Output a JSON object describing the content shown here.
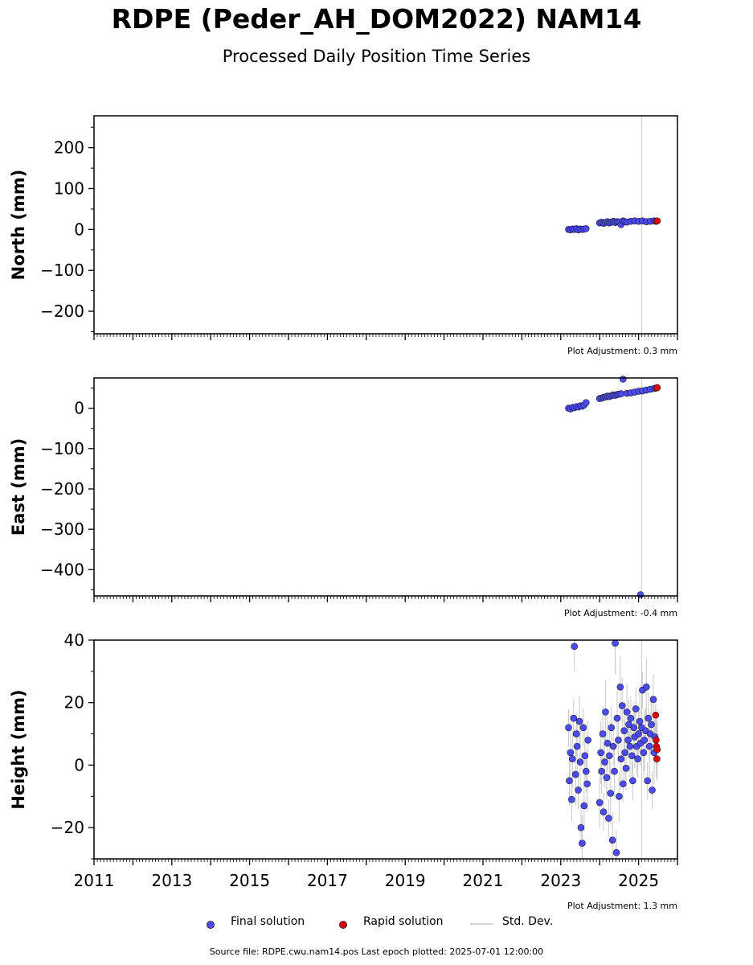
{
  "title": "RDPE (Peder_AH_DOM2022) NAM14",
  "subtitle": "Processed Daily Position Time Series",
  "legend": {
    "final": "Final solution",
    "rapid": "Rapid solution",
    "std": "Std. Dev.",
    "colors": {
      "final": "#4b4bef",
      "rapid": "#e00000",
      "std": "#d3d3d3"
    }
  },
  "source_note": "Source file: RDPE.cwu.nam14.pos  Last epoch plotted: 2025-07-01 12:00:00",
  "chart_data": [
    {
      "type": "scatter",
      "ylabel": "North (mm)",
      "adjustment": "Plot Adjustment: 0.3 mm",
      "xlim": [
        2011.0,
        2026.0
      ],
      "ylim": [
        -255,
        278
      ],
      "yticks": [
        -200,
        -100,
        0,
        100,
        200
      ],
      "ytick_labels": [
        "−200",
        "−100",
        "0",
        "100",
        "200"
      ],
      "series": [
        {
          "name": "Final solution",
          "x": [
            2023.2,
            2023.25,
            2023.3,
            2023.35,
            2023.4,
            2023.45,
            2023.5,
            2023.55,
            2023.6,
            2023.65,
            2024.0,
            2024.05,
            2024.1,
            2024.15,
            2024.2,
            2024.25,
            2024.3,
            2024.35,
            2024.4,
            2024.45,
            2024.5,
            2024.55,
            2024.6,
            2024.65,
            2024.7,
            2024.8,
            2024.9,
            2025.0,
            2025.1,
            2025.2,
            2025.3,
            2025.4
          ],
          "y": [
            0,
            -1,
            1,
            0,
            2,
            -1,
            1,
            0,
            1,
            2,
            16,
            18,
            15,
            17,
            19,
            16,
            18,
            20,
            17,
            19,
            18,
            12,
            21,
            19,
            18,
            20,
            21,
            20,
            21,
            19,
            20,
            21
          ]
        },
        {
          "name": "Rapid solution",
          "x": [
            2025.45,
            2025.48
          ],
          "y": [
            20,
            21
          ]
        }
      ]
    },
    {
      "type": "scatter",
      "ylabel": "East (mm)",
      "adjustment": "Plot Adjustment: -0.4 mm",
      "xlim": [
        2011.0,
        2026.0
      ],
      "ylim": [
        -465,
        75
      ],
      "yticks": [
        -400,
        -300,
        -200,
        -100,
        0
      ],
      "ytick_labels": [
        "−400",
        "−300",
        "−200",
        "−100",
        "0"
      ],
      "series": [
        {
          "name": "Final solution",
          "x": [
            2023.2,
            2023.25,
            2023.3,
            2023.35,
            2023.4,
            2023.45,
            2023.5,
            2023.55,
            2023.6,
            2023.65,
            2024.0,
            2024.05,
            2024.1,
            2024.15,
            2024.2,
            2024.25,
            2024.3,
            2024.35,
            2024.4,
            2024.45,
            2024.5,
            2024.55,
            2024.6,
            2024.7,
            2024.8,
            2024.9,
            2025.0,
            2025.05,
            2025.1,
            2025.2,
            2025.3,
            2025.4
          ],
          "y": [
            0,
            -2,
            2,
            1,
            4,
            3,
            6,
            5,
            8,
            14,
            24,
            25,
            27,
            28,
            30,
            29,
            31,
            33,
            32,
            34,
            35,
            36,
            72,
            37,
            38,
            40,
            42,
            -462,
            43,
            45,
            47,
            49
          ]
        },
        {
          "name": "Rapid solution",
          "x": [
            2025.45,
            2025.48
          ],
          "y": [
            50,
            51
          ]
        }
      ]
    },
    {
      "type": "scatter",
      "ylabel": "Height (mm)",
      "adjustment": "Plot Adjustment: 1.3 mm",
      "xlim": [
        2011.0,
        2026.0
      ],
      "ylim": [
        -30,
        40
      ],
      "yticks": [
        -20,
        0,
        20,
        40
      ],
      "ytick_labels": [
        "−20",
        "0",
        "20",
        "40"
      ],
      "xticks": [
        2011,
        2013,
        2015,
        2017,
        2019,
        2021,
        2023,
        2025
      ],
      "xtick_labels": [
        "2011",
        "2013",
        "2015",
        "2017",
        "2019",
        "2021",
        "2023",
        "2025"
      ],
      "series": [
        {
          "name": "Final solution",
          "x": [
            2023.2,
            2023.22,
            2023.25,
            2023.28,
            2023.3,
            2023.33,
            2023.35,
            2023.38,
            2023.4,
            2023.42,
            2023.45,
            2023.48,
            2023.5,
            2023.52,
            2023.55,
            2023.58,
            2023.6,
            2023.62,
            2023.65,
            2023.68,
            2023.7,
            2024.0,
            2024.03,
            2024.05,
            2024.08,
            2024.1,
            2024.13,
            2024.15,
            2024.18,
            2024.2,
            2024.23,
            2024.25,
            2024.28,
            2024.3,
            2024.33,
            2024.35,
            2024.38,
            2024.4,
            2024.43,
            2024.45,
            2024.48,
            2024.5,
            2024.53,
            2024.55,
            2024.58,
            2024.6,
            2024.63,
            2024.65,
            2024.68,
            2024.7,
            2024.73,
            2024.75,
            2024.78,
            2024.8,
            2024.83,
            2024.85,
            2024.88,
            2024.9,
            2024.93,
            2024.95,
            2024.98,
            2025.0,
            2025.03,
            2025.05,
            2025.08,
            2025.1,
            2025.13,
            2025.15,
            2025.18,
            2025.2,
            2025.23,
            2025.25,
            2025.28,
            2025.3,
            2025.33,
            2025.35,
            2025.38,
            2025.4,
            2025.42
          ],
          "y": [
            12,
            -5,
            4,
            -11,
            2,
            15,
            38,
            -3,
            10,
            6,
            -8,
            14,
            1,
            -20,
            -25,
            12,
            -13,
            3,
            -2,
            -6,
            8,
            -12,
            4,
            -2,
            10,
            -15,
            1,
            17,
            -4,
            7,
            -17,
            3,
            -9,
            12,
            -24,
            6,
            -2,
            39,
            -28,
            15,
            8,
            -10,
            25,
            2,
            19,
            -6,
            11,
            4,
            -1,
            17,
            8,
            13,
            6,
            15,
            3,
            -5,
            12,
            9,
            18,
            6,
            2,
            10,
            14,
            7,
            12,
            24,
            4,
            8,
            11,
            25,
            -5,
            15,
            6,
            10,
            13,
            -8,
            21,
            4,
            9
          ]
        },
        {
          "name": "Rapid solution",
          "x": [
            2025.44,
            2025.45,
            2025.46,
            2025.47,
            2025.48
          ],
          "y": [
            16,
            8,
            6,
            2,
            5
          ]
        }
      ]
    }
  ]
}
